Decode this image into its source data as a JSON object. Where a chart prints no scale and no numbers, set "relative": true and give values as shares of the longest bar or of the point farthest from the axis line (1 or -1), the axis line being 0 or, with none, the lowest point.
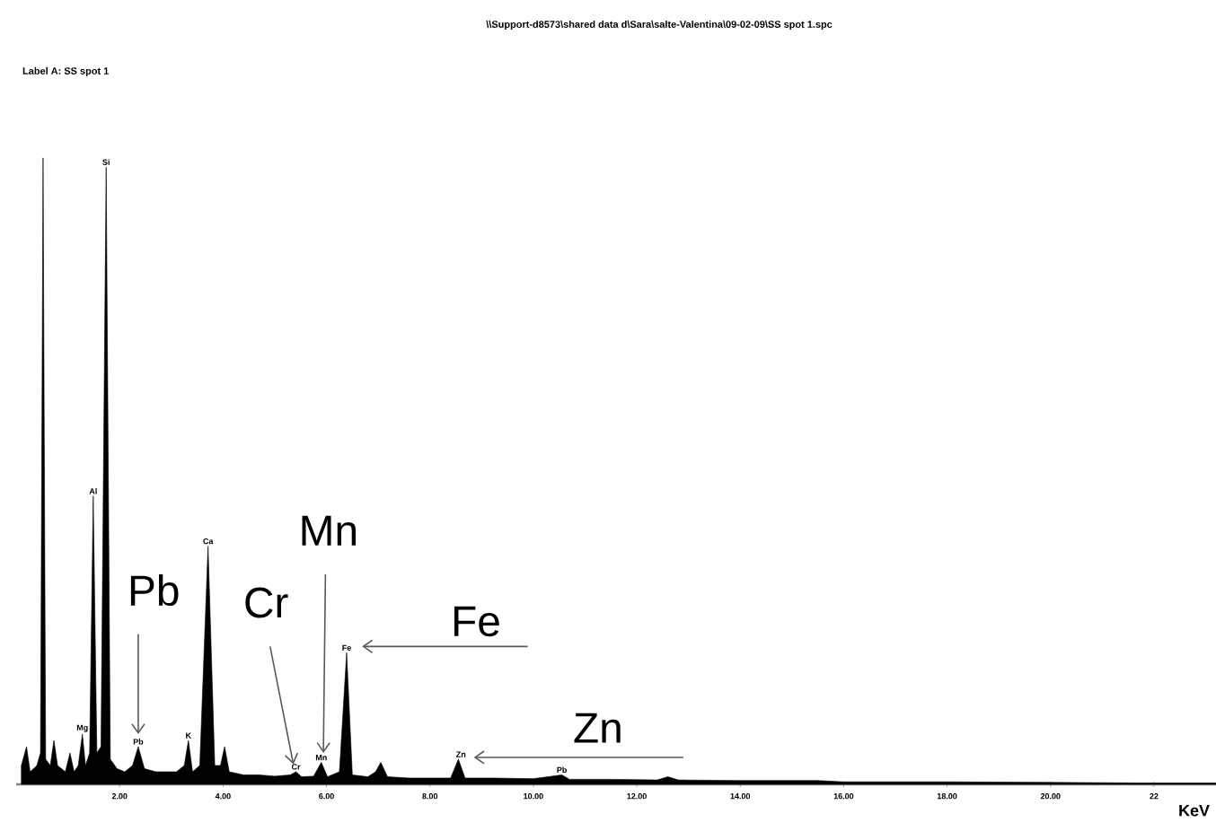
{
  "chart_data": {
    "type": "area",
    "relative": true,
    "title": "\\\\Support-d8573\\shared data d\\Sara\\salte-Valentina\\09-02-09\\SS spot 1.spc",
    "subtitle": "Label A: SS spot 1",
    "xlabel": "KeV",
    "color": "#000000",
    "xlim": [
      0,
      23.2
    ],
    "xticks": [
      {
        "value": 2,
        "label": "2.00"
      },
      {
        "value": 4,
        "label": "4.00"
      },
      {
        "value": 6,
        "label": "6.00"
      },
      {
        "value": 8,
        "label": "8.00"
      },
      {
        "value": 10,
        "label": "10.00"
      },
      {
        "value": 12,
        "label": "12.00"
      },
      {
        "value": 14,
        "label": "14.00"
      },
      {
        "value": 16,
        "label": "16.00"
      },
      {
        "value": 18,
        "label": "18.00"
      },
      {
        "value": 20,
        "label": "20.00"
      },
      22
    ],
    "x": [
      0.1,
      0.2,
      0.27,
      0.4,
      0.47,
      0.52,
      0.57,
      0.66,
      0.73,
      0.8,
      0.95,
      1.04,
      1.12,
      1.2,
      1.28,
      1.34,
      1.42,
      1.49,
      1.56,
      1.64,
      1.74,
      1.82,
      1.95,
      2.1,
      2.25,
      2.36,
      2.48,
      2.7,
      2.9,
      3.1,
      3.25,
      3.33,
      3.41,
      3.55,
      3.71,
      3.84,
      3.95,
      4.03,
      4.12,
      4.4,
      4.7,
      5.0,
      5.3,
      5.41,
      5.52,
      5.75,
      5.9,
      6.02,
      6.25,
      6.39,
      6.5,
      6.8,
      6.95,
      7.05,
      7.18,
      7.6,
      8.0,
      8.4,
      8.55,
      8.68,
      9.2,
      10.0,
      10.55,
      10.7,
      11.5,
      12.4,
      12.6,
      12.8,
      14,
      15.5,
      16,
      18,
      20,
      22,
      23.2
    ],
    "values": [
      0.03,
      0.06,
      0.02,
      0.03,
      0.05,
      1.0,
      0.04,
      0.03,
      0.07,
      0.03,
      0.02,
      0.05,
      0.02,
      0.03,
      0.08,
      0.03,
      0.05,
      0.46,
      0.05,
      0.06,
      0.985,
      0.04,
      0.025,
      0.02,
      0.03,
      0.06,
      0.025,
      0.02,
      0.02,
      0.02,
      0.03,
      0.07,
      0.02,
      0.03,
      0.38,
      0.03,
      0.03,
      0.06,
      0.02,
      0.015,
      0.015,
      0.013,
      0.015,
      0.02,
      0.012,
      0.013,
      0.035,
      0.012,
      0.02,
      0.21,
      0.015,
      0.012,
      0.02,
      0.035,
      0.012,
      0.01,
      0.01,
      0.01,
      0.04,
      0.01,
      0.01,
      0.009,
      0.015,
      0.008,
      0.008,
      0.007,
      0.012,
      0.007,
      0.006,
      0.006,
      0.004,
      0.004,
      0.003,
      0.002,
      0.002
    ],
    "annotations": [
      {
        "text": "Mg",
        "x": 1.28,
        "y": 0.08
      },
      {
        "text": "Al",
        "x": 1.49,
        "y": 0.46
      },
      {
        "text": "Si",
        "x": 1.74,
        "y": 0.985
      },
      {
        "text": "Pb",
        "x": 2.36,
        "y": 0.06
      },
      {
        "text": "K",
        "x": 3.33,
        "y": 0.07
      },
      {
        "text": "Ca",
        "x": 3.71,
        "y": 0.38
      },
      {
        "text": "Cr",
        "x": 5.41,
        "y": 0.02
      },
      {
        "text": "Mn",
        "x": 5.9,
        "y": 0.035
      },
      {
        "text": "Fe",
        "x": 6.39,
        "y": 0.21
      },
      {
        "text": "Zn",
        "x": 8.6,
        "y": 0.04
      },
      {
        "text": "Pb",
        "x": 10.55,
        "y": 0.015
      },
      {
        "text": "Pb",
        "x": 2.36,
        "y": 0.06
      },
      {
        "text": "Cr",
        "x": 5.41,
        "y": 0.02
      },
      {
        "text": "Mn",
        "x": 5.9,
        "y": 0.035
      },
      {
        "text": "Fe",
        "x": 6.39,
        "y": 0.21
      },
      {
        "text": "Zn",
        "x": 8.6,
        "y": 0.04
      }
    ]
  }
}
